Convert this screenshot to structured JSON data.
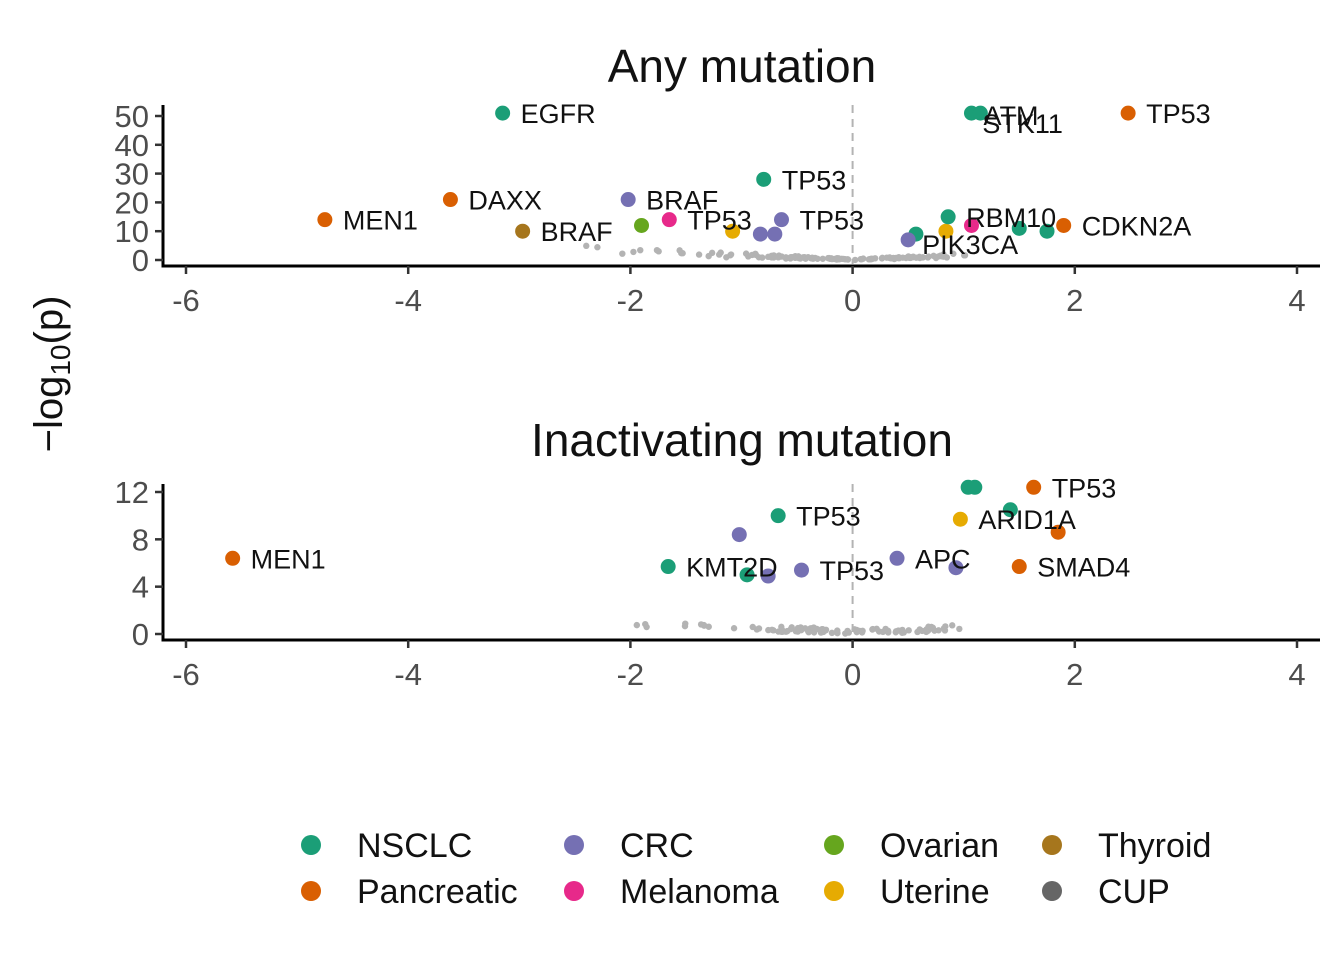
{
  "ylabel": {
    "prefix": "−log",
    "sub": "10",
    "suffix": "(p)"
  },
  "colors": {
    "NSCLC": "#1B9E77",
    "Pancreatic": "#D95F02",
    "CRC": "#7570B3",
    "Melanoma": "#E7298A",
    "Ovarian": "#66A61E",
    "Uterine": "#E6AB02",
    "Thyroid": "#A6761D",
    "CUP": "#666666",
    "background": "#b3b3b3"
  },
  "legend": {
    "entries": [
      "NSCLC",
      "Pancreatic",
      "CRC",
      "Melanoma",
      "Ovarian",
      "Uterine",
      "Thyroid",
      "CUP"
    ]
  },
  "chart_data": [
    {
      "type": "scatter",
      "title": "Any mutation",
      "xlim": [
        -6.0,
        4.0
      ],
      "ylim": [
        0,
        53
      ],
      "xticks": [
        "-6",
        "-4",
        "-2",
        "0",
        "2",
        "4"
      ],
      "yticks": [
        "0",
        "10",
        "20",
        "30",
        "40",
        "50"
      ],
      "reference_line_x": 0,
      "labeled_points": [
        {
          "x": -3.15,
          "y": 51,
          "group": "NSCLC",
          "label": "EGFR"
        },
        {
          "x": 1.07,
          "y": 51,
          "group": "NSCLC",
          "label": "ATM"
        },
        {
          "x": 1.15,
          "y": 51,
          "group": "NSCLC",
          "label": "STK11"
        },
        {
          "x": 2.48,
          "y": 51,
          "group": "Pancreatic",
          "label": "TP53"
        },
        {
          "x": -0.8,
          "y": 28,
          "group": "NSCLC",
          "label": "TP53"
        },
        {
          "x": -3.62,
          "y": 21,
          "group": "Pancreatic",
          "label": "DAXX"
        },
        {
          "x": -2.02,
          "y": 21,
          "group": "CRC",
          "label": "BRAF"
        },
        {
          "x": -4.75,
          "y": 14,
          "group": "Pancreatic",
          "label": "MEN1"
        },
        {
          "x": 0.86,
          "y": 15,
          "group": "NSCLC",
          "label": "RBM10"
        },
        {
          "x": 1.9,
          "y": 12,
          "group": "Pancreatic",
          "label": "CDKN2A"
        },
        {
          "x": -2.97,
          "y": 10,
          "group": "Thyroid",
          "label": "BRAF"
        },
        {
          "x": -1.65,
          "y": 14,
          "group": "Melanoma",
          "label": "TP53"
        },
        {
          "x": -0.64,
          "y": 14,
          "group": "CRC",
          "label": "TP53"
        },
        {
          "x": 0.5,
          "y": 7,
          "group": "CRC",
          "label": "PIK3CA"
        }
      ],
      "unlabeled_points": [
        {
          "x": -1.9,
          "y": 12,
          "group": "Ovarian"
        },
        {
          "x": -1.08,
          "y": 10,
          "group": "Uterine"
        },
        {
          "x": -0.83,
          "y": 9,
          "group": "CRC"
        },
        {
          "x": -0.7,
          "y": 9,
          "group": "CRC"
        },
        {
          "x": 0.57,
          "y": 9,
          "group": "NSCLC"
        },
        {
          "x": 0.84,
          "y": 10,
          "group": "Uterine"
        },
        {
          "x": 1.07,
          "y": 12,
          "group": "Melanoma"
        },
        {
          "x": 1.5,
          "y": 11,
          "group": "NSCLC"
        },
        {
          "x": 1.75,
          "y": 10,
          "group": "NSCLC"
        }
      ]
    },
    {
      "type": "scatter",
      "title": "Inactivating mutation",
      "xlim": [
        -6.0,
        4.0
      ],
      "ylim": [
        0,
        12.8
      ],
      "xticks": [
        "-6",
        "-4",
        "-2",
        "0",
        "2",
        "4"
      ],
      "yticks": [
        "0",
        "4",
        "8",
        "12"
      ],
      "reference_line_x": 0,
      "labeled_points": [
        {
          "x": 1.63,
          "y": 12.4,
          "group": "Pancreatic",
          "label": "TP53"
        },
        {
          "x": -0.67,
          "y": 10.0,
          "group": "NSCLC",
          "label": "TP53"
        },
        {
          "x": 0.97,
          "y": 9.7,
          "group": "Uterine",
          "label": "ARID1A"
        },
        {
          "x": -5.58,
          "y": 6.4,
          "group": "Pancreatic",
          "label": "MEN1"
        },
        {
          "x": -1.66,
          "y": 5.7,
          "group": "NSCLC",
          "label": "KMT2D"
        },
        {
          "x": -0.46,
          "y": 5.4,
          "group": "CRC",
          "label": "TP53"
        },
        {
          "x": 0.4,
          "y": 6.4,
          "group": "CRC",
          "label": "APC"
        },
        {
          "x": 1.5,
          "y": 5.7,
          "group": "Pancreatic",
          "label": "SMAD4"
        }
      ],
      "unlabeled_points": [
        {
          "x": 1.04,
          "y": 12.4,
          "group": "NSCLC"
        },
        {
          "x": 1.1,
          "y": 12.4,
          "group": "NSCLC"
        },
        {
          "x": 1.42,
          "y": 10.5,
          "group": "NSCLC"
        },
        {
          "x": 1.85,
          "y": 8.6,
          "group": "Pancreatic"
        },
        {
          "x": -1.02,
          "y": 8.4,
          "group": "CRC"
        },
        {
          "x": -0.95,
          "y": 5.0,
          "group": "NSCLC"
        },
        {
          "x": -0.76,
          "y": 4.9,
          "group": "CRC"
        },
        {
          "x": 0.93,
          "y": 5.6,
          "group": "CRC"
        }
      ]
    }
  ]
}
